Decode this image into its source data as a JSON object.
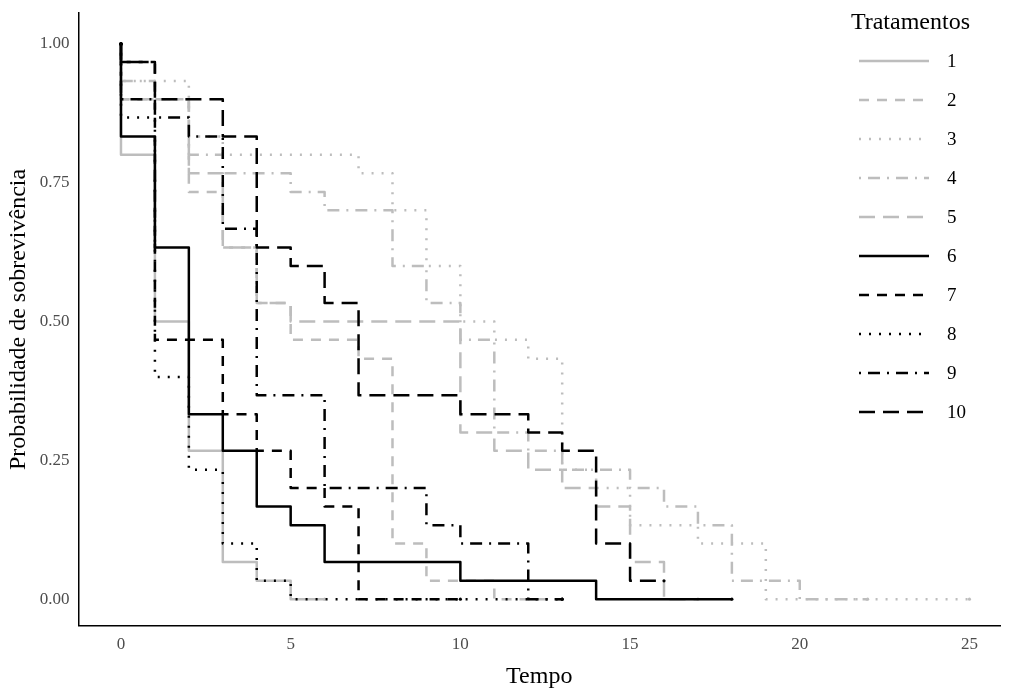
{
  "chart_data": {
    "type": "step",
    "xlabel": "Tempo",
    "ylabel": "Probabilidade de sobrevivência",
    "legend_title": "Tratamentos",
    "legend": "top right",
    "grid": false,
    "xlim": [
      -1.25,
      25.9
    ],
    "xticks": [
      0,
      5,
      10,
      15,
      20,
      25
    ],
    "ylim": [
      -0.048,
      1.055
    ],
    "yticks": [
      {
        "value": 0,
        "label": "0.00"
      },
      {
        "value": 0.25,
        "label": "0.25"
      },
      {
        "value": 0.5,
        "label": "0.50"
      },
      {
        "value": 0.75,
        "label": "0.75"
      },
      {
        "value": 1,
        "label": "1.00"
      }
    ],
    "series": [
      {
        "name": "1",
        "color": "#bdbdbd",
        "line_style": "solid",
        "x": [
          0,
          1,
          2,
          3,
          4,
          5,
          6
        ],
        "values": [
          1,
          0.8,
          0.5,
          0.267,
          0.067,
          0.033,
          0
        ]
      },
      {
        "name": "2",
        "color": "#bdbdbd",
        "line_style": "dashed",
        "x": [
          0,
          2,
          3,
          4,
          5,
          7,
          8,
          9,
          11,
          13
        ],
        "values": [
          1,
          0.9,
          0.733,
          0.633,
          0.533,
          0.467,
          0.433,
          0.1,
          0.033,
          0
        ]
      },
      {
        "name": "3",
        "color": "#bdbdbd",
        "line_style": "dotted",
        "x": [
          0,
          2,
          3,
          7,
          8,
          9,
          10,
          11,
          12,
          13,
          14,
          15,
          17,
          19,
          25
        ],
        "values": [
          1,
          0.933,
          0.833,
          0.8,
          0.767,
          0.7,
          0.6,
          0.5,
          0.467,
          0.433,
          0.233,
          0.2,
          0.133,
          0.1,
          0
        ]
      },
      {
        "name": "4",
        "color": "#bdbdbd",
        "line_style": "dashdot",
        "x": [
          0,
          1,
          2,
          3,
          5,
          6,
          8,
          9,
          10,
          11,
          12,
          13,
          15,
          16,
          17,
          18,
          20,
          22
        ],
        "values": [
          1,
          0.933,
          0.9,
          0.8,
          0.767,
          0.733,
          0.7,
          0.6,
          0.533,
          0.467,
          0.3,
          0.267,
          0.233,
          0.2,
          0.167,
          0.133,
          0.033,
          0
        ]
      },
      {
        "name": "5",
        "color": "#bdbdbd",
        "line_style": "longdash",
        "x": [
          0,
          2,
          3,
          4,
          5,
          10,
          11,
          12,
          13,
          14,
          15,
          16,
          17
        ],
        "values": [
          1,
          0.9,
          0.767,
          0.633,
          0.533,
          0.5,
          0.3,
          0.267,
          0.233,
          0.2,
          0.167,
          0.067,
          0
        ]
      },
      {
        "name": "6",
        "color": "#000000",
        "line_style": "solid",
        "x": [
          0,
          1,
          2,
          3,
          4,
          5,
          6,
          10,
          14,
          18
        ],
        "values": [
          1,
          0.833,
          0.633,
          0.333,
          0.267,
          0.167,
          0.133,
          0.067,
          0.033,
          0
        ]
      },
      {
        "name": "7",
        "color": "#000000",
        "line_style": "dashed",
        "x": [
          0,
          1,
          3,
          4,
          5,
          6,
          7,
          10
        ],
        "values": [
          1,
          0.967,
          0.467,
          0.333,
          0.267,
          0.2,
          0.167,
          0
        ]
      },
      {
        "name": "8",
        "color": "#000000",
        "line_style": "dotted",
        "x": [
          0,
          1,
          2,
          3,
          4,
          5,
          13
        ],
        "values": [
          1,
          0.867,
          0.4,
          0.233,
          0.1,
          0.033,
          0
        ]
      },
      {
        "name": "9",
        "color": "#000000",
        "line_style": "dashdot",
        "x": [
          0,
          1,
          2,
          3,
          4,
          6,
          9,
          10,
          12,
          13
        ],
        "values": [
          1,
          0.9,
          0.867,
          0.833,
          0.667,
          0.367,
          0.2,
          0.133,
          0.1,
          0
        ]
      },
      {
        "name": "10",
        "color": "#000000",
        "line_style": "longdash",
        "x": [
          0,
          1,
          3,
          4,
          5,
          6,
          7,
          10,
          12,
          13,
          14,
          15,
          16
        ],
        "values": [
          1,
          0.967,
          0.9,
          0.833,
          0.633,
          0.6,
          0.533,
          0.367,
          0.333,
          0.3,
          0.267,
          0.1,
          0.033
        ]
      }
    ]
  }
}
